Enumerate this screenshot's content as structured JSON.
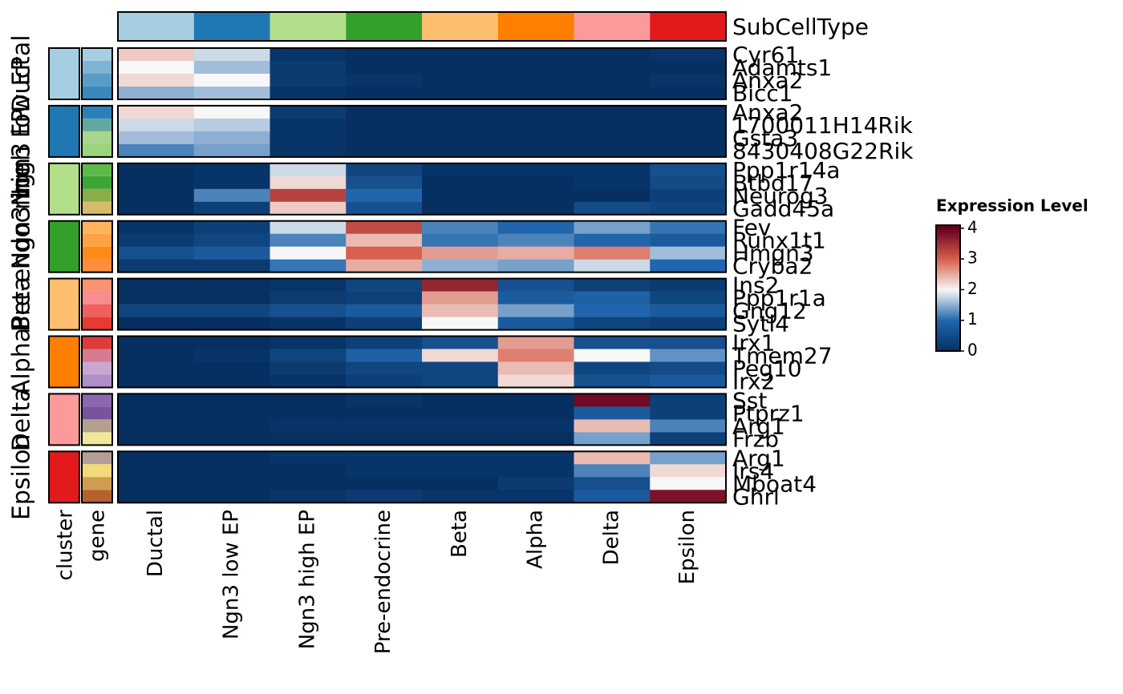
{
  "chart_data": {
    "type": "heatmap",
    "annotation_title": "SubCellType",
    "legend_title": "Expression Level",
    "cluster_label": "cluster",
    "gene_label": "gene",
    "categories": [
      "Ductal",
      "Ngn3 low EP",
      "Ngn3 high EP",
      "Pre-endocrine",
      "Beta",
      "Alpha",
      "Delta",
      "Epsilon"
    ],
    "category_colors": [
      "#a6cee3",
      "#1f78b4",
      "#b2df8a",
      "#33a02c",
      "#fdbf6f",
      "#ff7f00",
      "#fb9a99",
      "#e31a1c"
    ],
    "row_groups": [
      [
        {
          "name": "Cyr61",
          "color": "#a6cee3",
          "values": [
            2.3,
            1.8,
            0.1,
            0,
            0,
            0,
            0,
            0.1
          ]
        },
        {
          "name": "Adamts1",
          "color": "#7fb2d5",
          "values": [
            2,
            1.6,
            0.2,
            0,
            0,
            0,
            0,
            0
          ]
        },
        {
          "name": "Anxa2",
          "color": "#5a9cc8",
          "values": [
            2.2,
            2,
            0.2,
            0.1,
            0,
            0,
            0,
            0.1
          ]
        },
        {
          "name": "Bicc1",
          "color": "#3c88bd",
          "values": [
            1.5,
            1.6,
            0.1,
            0,
            0,
            0,
            0,
            0
          ]
        }
      ],
      [
        {
          "name": "Anxa2",
          "color": "#2d7fb8",
          "values": [
            2.2,
            2,
            0.2,
            0,
            0,
            0,
            0,
            0
          ]
        },
        {
          "name": "1700011H14Rik",
          "color": "#63a8a0",
          "values": [
            1.8,
            1.7,
            0.1,
            0,
            0,
            0,
            0,
            0
          ]
        },
        {
          "name": "Gsta3",
          "color": "#a6d68e",
          "values": [
            1.6,
            1.5,
            0.1,
            0,
            0,
            0,
            0,
            0
          ]
        },
        {
          "name": "8430408G22Rik",
          "color": "#9ad57e",
          "values": [
            1.2,
            1.4,
            0.1,
            0,
            0,
            0,
            0,
            0
          ]
        }
      ],
      [
        {
          "name": "Ppp1r14a",
          "color": "#5db94a",
          "values": [
            0,
            0.1,
            1.8,
            0.4,
            0.1,
            0.1,
            0.1,
            0.6
          ]
        },
        {
          "name": "Btbd17",
          "color": "#3ea434",
          "values": [
            0,
            0.1,
            2.2,
            0.6,
            0,
            0,
            0.1,
            0.5
          ]
        },
        {
          "name": "Neurog3",
          "color": "#88ad4b",
          "values": [
            0,
            1.2,
            3.3,
            1,
            0,
            0,
            0,
            0.3
          ]
        },
        {
          "name": "Gadd45a",
          "color": "#d6bb6a",
          "values": [
            0,
            0.3,
            2.3,
            0.6,
            0,
            0,
            0.5,
            0.4
          ]
        }
      ],
      [
        {
          "name": "Fev",
          "color": "#fdb360",
          "values": [
            0.1,
            0.3,
            1.8,
            3.2,
            1.2,
            1,
            1.4,
            1.1
          ]
        },
        {
          "name": "Runx1t1",
          "color": "#fea245",
          "values": [
            0.2,
            0.4,
            1.2,
            2.4,
            1.1,
            1.2,
            1,
            0.8
          ]
        },
        {
          "name": "Hmgn3",
          "color": "#ff8b17",
          "values": [
            0.6,
            0.8,
            2,
            3,
            2.6,
            2.5,
            2.8,
            1.6
          ]
        },
        {
          "name": "Cryba2",
          "color": "#fd8c3c",
          "values": [
            0.2,
            0.2,
            1.1,
            2.5,
            1.5,
            1.4,
            1.8,
            1
          ]
        }
      ],
      [
        {
          "name": "Ins2",
          "color": "#fc9272",
          "values": [
            0,
            0,
            0.1,
            0.4,
            3.6,
            0.6,
            0.3,
            0.2
          ]
        },
        {
          "name": "Ppp1r1a",
          "color": "#f98d8e",
          "values": [
            0,
            0,
            0.2,
            0.3,
            2.6,
            0.8,
            0.9,
            0.4
          ]
        },
        {
          "name": "Gng12",
          "color": "#f06060",
          "values": [
            0.4,
            0.4,
            0.6,
            0.8,
            2.4,
            1.4,
            1,
            0.8
          ]
        },
        {
          "name": "Sytl4",
          "color": "#e83a34",
          "values": [
            0,
            0,
            0.1,
            0.3,
            2,
            0.8,
            0.4,
            0.3
          ]
        }
      ],
      [
        {
          "name": "Irx1",
          "color": "#de3b3c",
          "values": [
            0,
            0,
            0.1,
            0.3,
            0.6,
            2.6,
            0.6,
            0.6
          ]
        },
        {
          "name": "Tmem27",
          "color": "#d67b8f",
          "values": [
            0,
            0.1,
            0.4,
            0.9,
            2.2,
            2.8,
            2,
            1.3
          ]
        },
        {
          "name": "Peg10",
          "color": "#c9a7d0",
          "values": [
            0,
            0,
            0.2,
            0.4,
            0.4,
            2.4,
            0.4,
            0.5
          ]
        },
        {
          "name": "Irx2",
          "color": "#ae8fc7",
          "values": [
            0,
            0,
            0.1,
            0.3,
            0.4,
            2.2,
            0.6,
            0.8
          ]
        }
      ],
      [
        {
          "name": "Sst",
          "color": "#8c67b0",
          "values": [
            0,
            0,
            0,
            0.1,
            0,
            0,
            3.9,
            0.3
          ]
        },
        {
          "name": "Ptprz1",
          "color": "#7a539e",
          "values": [
            0,
            0,
            0,
            0,
            0,
            0,
            0.8,
            0.3
          ]
        },
        {
          "name": "Arg1",
          "color": "#b3a08f",
          "values": [
            0,
            0,
            0.1,
            0.1,
            0.1,
            0.1,
            2.4,
            1.2
          ]
        },
        {
          "name": "Frzb",
          "color": "#efe799",
          "values": [
            0,
            0,
            0,
            0,
            0,
            0,
            1.4,
            0.3
          ]
        }
      ],
      [
        {
          "name": "Arg1",
          "color": "#b39f97",
          "values": [
            0,
            0,
            0.1,
            0.1,
            0.1,
            0.1,
            2.4,
            1.4
          ]
        },
        {
          "name": "Irs4",
          "color": "#f2d97a",
          "values": [
            0,
            0,
            0,
            0.1,
            0.1,
            0.1,
            1.2,
            2.2
          ]
        },
        {
          "name": "Mboat4",
          "color": "#cf9c52",
          "values": [
            0,
            0,
            0,
            0,
            0,
            0.2,
            0.6,
            2
          ]
        },
        {
          "name": "Ghrl",
          "color": "#b5602f",
          "values": [
            0,
            0,
            0.1,
            0.2,
            0.1,
            0.1,
            0.8,
            3.8
          ]
        }
      ]
    ],
    "colorbar_lim": [
      0,
      4.1
    ],
    "colorbar_ticks": [
      0,
      1,
      2,
      3,
      4
    ],
    "colorscale": [
      "#053061",
      "#2166ac",
      "#f7f7f7",
      "#d6604d",
      "#67001f"
    ]
  }
}
